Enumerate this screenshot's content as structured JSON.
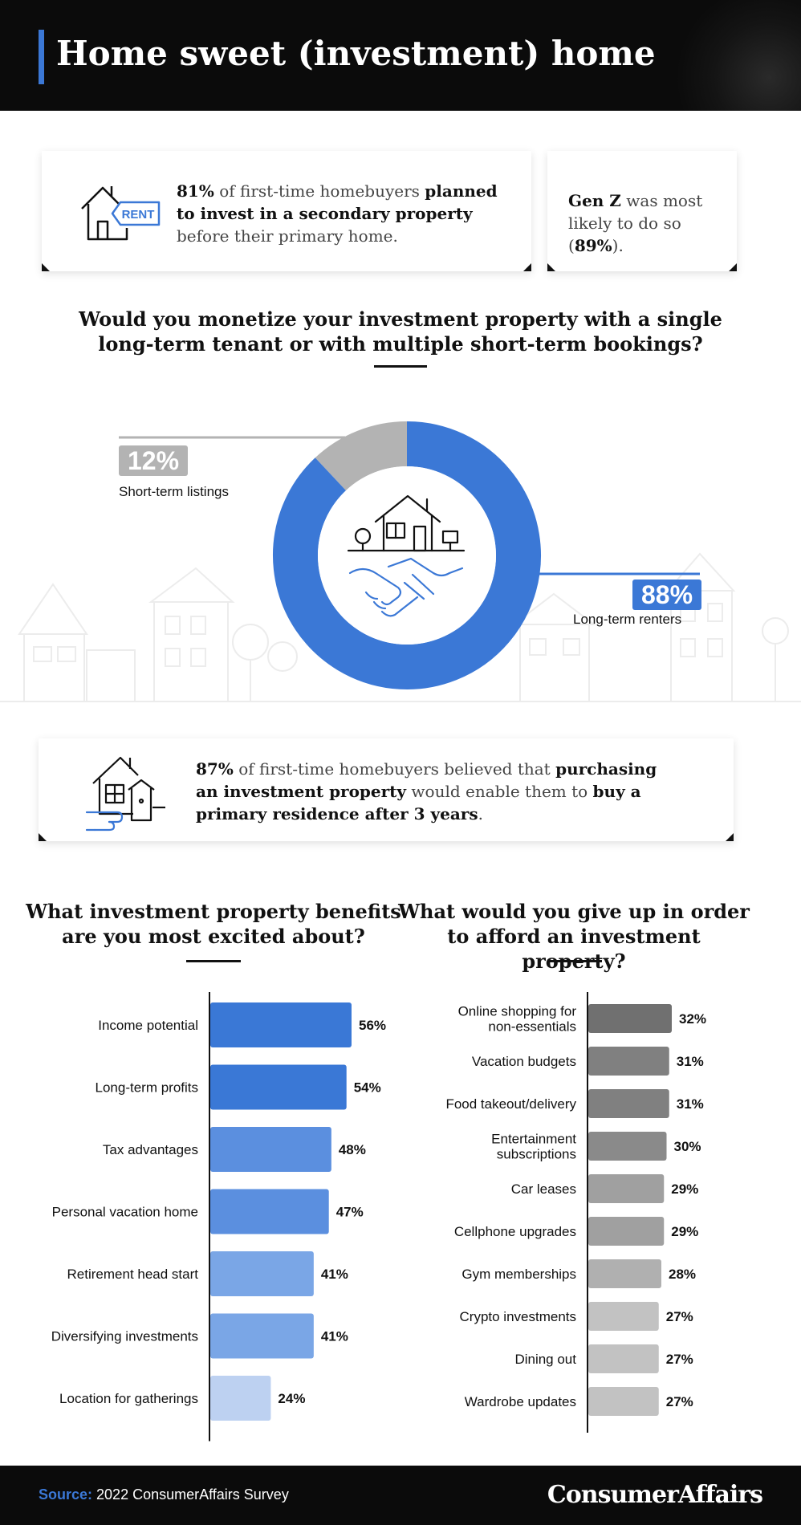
{
  "header": {
    "title": "Home sweet (investment) home"
  },
  "card1": {
    "icon": "rent-house-icon",
    "pct": "81%",
    "t1": " of first-time homebuyers ",
    "b1": "planned to invest in a secondary property",
    "t2": " before their primary home."
  },
  "card2": {
    "b1": "Gen Z",
    "t1": " was most likely to do so (",
    "b2": "89%",
    "t2": ")."
  },
  "donut_question": {
    "line1": "Would you monetize your investment property with a single",
    "line2": "long-term tenant or with multiple short-term bookings?"
  },
  "donut_center_icon": "house-handshake-icon",
  "card3": {
    "icon": "house-hand-icon",
    "pct": "87%",
    "t1": " of first-time homebuyers believed that ",
    "b1": "purchasing an investment property",
    "t2": " would enable them to ",
    "b2": "buy a primary residence after 3 years",
    "t3": "."
  },
  "benefits_question": {
    "line1": "What investment property benefits",
    "line2": "are you most excited about?"
  },
  "giveup_question": {
    "line1": "What would you give up in order",
    "line2": "to afford an investment property?"
  },
  "colors": {
    "accent": "#3b78d6",
    "short_term": "#b3b3b3",
    "long_term": "#3b78d6"
  },
  "chart_data": [
    {
      "type": "pie",
      "categories": [
        "Short-term listings",
        "Long-term renters"
      ],
      "values": [
        12,
        88
      ],
      "value_labels": [
        "12%",
        "88%"
      ],
      "colors": [
        "#b3b3b3",
        "#3b78d6"
      ]
    },
    {
      "type": "bar",
      "orientation": "horizontal",
      "categories": [
        "Income potential",
        "Long-term profits",
        "Tax advantages",
        "Personal vacation home",
        "Retirement head start",
        "Diversifying investments",
        "Location for gatherings"
      ],
      "values": [
        56,
        54,
        48,
        47,
        41,
        41,
        24
      ],
      "value_labels": [
        "56%",
        "54%",
        "48%",
        "47%",
        "41%",
        "41%",
        "24%"
      ],
      "colors": [
        "#3a78d6",
        "#3a78d6",
        "#5b8fdf",
        "#5b8fdf",
        "#7aa6e6",
        "#7aa6e6",
        "#bdd1f1"
      ]
    },
    {
      "type": "bar",
      "orientation": "horizontal",
      "categories": [
        "Online shopping for non-essentials",
        "Vacation budgets",
        "Food takeout/delivery",
        "Entertainment subscriptions",
        "Car leases",
        "Cellphone upgrades",
        "Gym memberships",
        "Crypto investments",
        "Dining out",
        "Wardrobe updates"
      ],
      "values": [
        32,
        31,
        31,
        30,
        29,
        29,
        28,
        27,
        27,
        27
      ],
      "value_labels": [
        "32%",
        "31%",
        "31%",
        "30%",
        "29%",
        "29%",
        "28%",
        "27%",
        "27%",
        "27%"
      ],
      "colors": [
        "#707070",
        "#808080",
        "#808080",
        "#8a8a8a",
        "#a0a0a0",
        "#a0a0a0",
        "#b0b0b0",
        "#c2c2c2",
        "#c2c2c2",
        "#c2c2c2"
      ]
    }
  ],
  "footer": {
    "source_label": "Source:",
    "source_text": " 2022 ConsumerAffairs Survey",
    "brand": "ConsumerAffairs"
  }
}
